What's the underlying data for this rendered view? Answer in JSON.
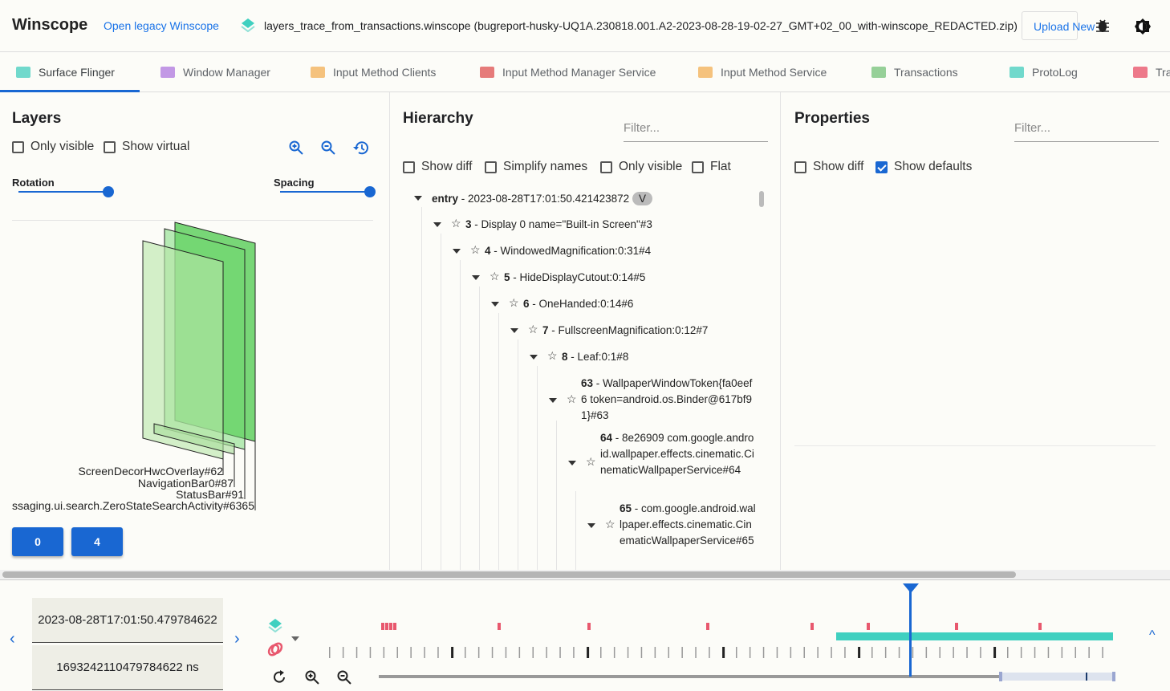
{
  "header": {
    "title": "Winscope",
    "legacy_link": "Open legacy Winscope",
    "trace_file": "layers_trace_from_transactions.winscope (bugreport-husky-UQ1A.230818.001.A2-2023-08-28-19-02-27_GMT+02_00_with-winscope_REDACTED.zip)",
    "upload_label": "Upload New",
    "icons": [
      "bug-icon",
      "theme-toggle-icon"
    ]
  },
  "tabs": [
    {
      "label": "Surface Flinger",
      "color": "#4dd0c1",
      "active": true
    },
    {
      "label": "Window Manager",
      "color": "#b37ee0"
    },
    {
      "label": "Input Method Clients",
      "color": "#f2b35e"
    },
    {
      "label": "Input Method Manager Service",
      "color": "#e05a5a"
    },
    {
      "label": "Input Method Service",
      "color": "#f2b35e"
    },
    {
      "label": "Transactions",
      "color": "#7cc47f"
    },
    {
      "label": "ProtoLog",
      "color": "#4dd0c1"
    },
    {
      "label": "Tra",
      "color": "#e8586e"
    }
  ],
  "layers": {
    "title": "Layers",
    "only_visible": "Only visible",
    "show_virtual": "Show virtual",
    "rotation": "Rotation",
    "spacing": "Spacing",
    "rotation_value": 1.0,
    "spacing_value": 1.0,
    "labels": [
      "ScreenDecorHwcOverlay#62",
      "NavigationBar0#87",
      "StatusBar#91",
      "ssaging.ui.search.ZeroStateSearchActivity#6365"
    ],
    "display_buttons": [
      "0",
      "4"
    ],
    "layer_color": "#4cc94c"
  },
  "hierarchy": {
    "title": "Hierarchy",
    "filter_placeholder": "Filter...",
    "options": [
      "Show diff",
      "Simplify names",
      "Only visible",
      "Flat"
    ],
    "root": {
      "label": "entry",
      "rest": " - 2023-08-28T17:01:50.421423872",
      "badge": "V"
    },
    "nodes": [
      {
        "id": "3",
        "rest": " - Display 0 name=\"Built-in Screen\"#3"
      },
      {
        "id": "4",
        "rest": " - WindowedMagnification:0:31#4"
      },
      {
        "id": "5",
        "rest": " - HideDisplayCutout:0:14#5"
      },
      {
        "id": "6",
        "rest": " - OneHanded:0:14#6"
      },
      {
        "id": "7",
        "rest": " - FullscreenMagnification:0:12#7"
      },
      {
        "id": "8",
        "rest": " - Leaf:0:1#8"
      },
      {
        "id": "63",
        "rest": " - WallpaperWindowToken{fa0eef6 token=android.os.Binder@617bf91}#63"
      },
      {
        "id": "64",
        "rest": " - 8e26909 com.google.android.wallpaper.effects.cinematic.CinematicWallpaperService#64"
      },
      {
        "id": "65",
        "rest": " - com.google.android.wallpaper.effects.cinematic.CinematicWallpaperService#65"
      }
    ]
  },
  "properties": {
    "title": "Properties",
    "filter_placeholder": "Filter...",
    "show_diff": "Show diff",
    "show_defaults": "Show defaults",
    "show_defaults_checked": true
  },
  "timeline": {
    "timestamp": "2023-08-28T17:01:50.479784622",
    "timestamp_ns": "1693242110479784622 ns",
    "accent": "#1967d2",
    "transactions_color": "#e8586e",
    "layers_color": "#40d0c0"
  }
}
